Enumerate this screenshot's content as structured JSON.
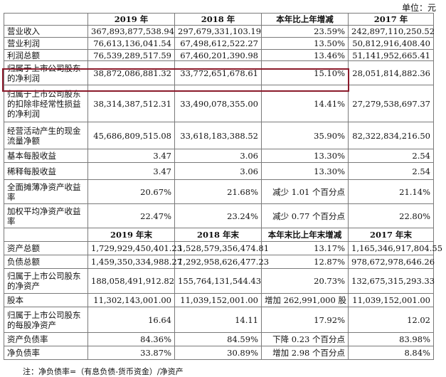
{
  "unit": "单位：元",
  "header1": [
    "",
    "2019 年",
    "2018 年",
    "本年比上年增减",
    "2017 年"
  ],
  "rows1": [
    {
      "label": "营业收入",
      "v2019": "367,893,877,538.94",
      "v2018": "297,679,331,103.19",
      "change": "23.59%",
      "v2017": "242,897,110,250.52"
    },
    {
      "label": "营业利润",
      "v2019": "76,613,136,041.54",
      "v2018": "67,498,612,522.27",
      "change": "13.50%",
      "v2017": "50,812,916,408.40"
    },
    {
      "label": "利润总额",
      "v2019": "76,539,289,517.59",
      "v2018": "67,460,201,390.98",
      "change": "13.46%",
      "v2017": "51,141,952,665.41"
    },
    {
      "label": "归属于上市公司股东的净利润",
      "v2019": "38,872,086,881.32",
      "v2018": "33,772,651,678.61",
      "change": "15.10%",
      "v2017": "28,051,814,882.36"
    },
    {
      "label": "归属于上市公司股东的扣除非经常性损益的净利润",
      "v2019": "38,314,387,512.31",
      "v2018": "33,490,078,355.00",
      "change": "14.41%",
      "v2017": "27,279,538,697.37"
    },
    {
      "label": "经营活动产生的现金流量净额",
      "v2019": "45,686,809,515.08",
      "v2018": "33,618,183,388.52",
      "change": "35.90%",
      "v2017": "82,322,834,216.50"
    },
    {
      "label": "基本每股收益",
      "v2019": "3.47",
      "v2018": "3.06",
      "change": "13.30%",
      "v2017": "2.54"
    },
    {
      "label": "稀释每股收益",
      "v2019": "3.47",
      "v2018": "3.06",
      "change": "13.30%",
      "v2017": "2.54"
    },
    {
      "label": "全面摊薄净资产收益率",
      "v2019": "20.67%",
      "v2018": "21.68%",
      "change": "减少 1.01 个百分点",
      "v2017": "21.14%"
    },
    {
      "label": "加权平均净资产收益率",
      "v2019": "22.47%",
      "v2018": "23.24%",
      "change": "减少 0.77 个百分点",
      "v2017": "22.80%"
    }
  ],
  "header2": [
    "",
    "2019 年末",
    "2018 年末",
    "本年末比上年末增减",
    "2017 年末"
  ],
  "rows2": [
    {
      "label": "资产总额",
      "v2019": "1,729,929,450,401.23",
      "v2018": "1,528,579,356,474.81",
      "change": "13.17%",
      "v2017": "1,165,346,917,804.55"
    },
    {
      "label": "负债总额",
      "v2019": "1,459,350,334,988.27",
      "v2018": "1,292,958,626,477.23",
      "change": "12.87%",
      "v2017": "978,672,978,646.26"
    },
    {
      "label": "归属于上市公司股东的净资产",
      "v2019": "188,058,491,912.82",
      "v2018": "155,764,131,544.43",
      "change": "20.73%",
      "v2017": "132,675,315,293.33"
    },
    {
      "label": "股本",
      "v2019": "11,302,143,001.00",
      "v2018": "11,039,152,001.00",
      "change": "增加 262,991,000 股",
      "v2017": "11,039,152,001.00"
    },
    {
      "label": "归属于上市公司股东的每股净资产",
      "v2019": "16.64",
      "v2018": "14.11",
      "change": "17.92%",
      "v2017": "12.02"
    },
    {
      "label": "资产负债率",
      "v2019": "84.36%",
      "v2018": "84.59%",
      "change": "下降 0.23 个百分点",
      "v2017": "83.98%"
    },
    {
      "label": "净负债率",
      "v2019": "33.87%",
      "v2018": "30.89%",
      "change": "增加 2.98 个百分点",
      "v2017": "8.84%"
    }
  ],
  "footnote": "注：净负债率=（有息负债-货币资金）/净资产"
}
